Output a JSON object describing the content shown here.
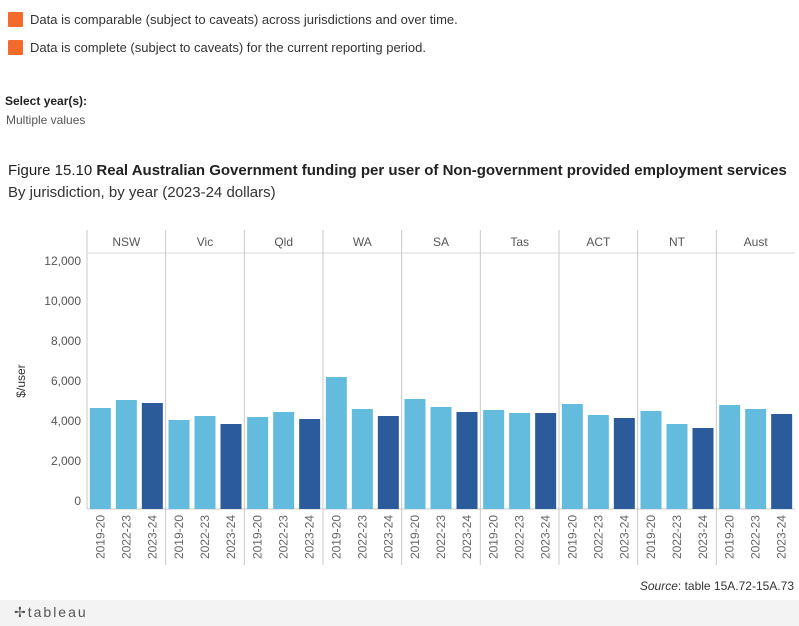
{
  "legend": [
    {
      "label": "Data is comparable (subject to caveats) across jurisdictions and over time.",
      "color": "#f26b2a"
    },
    {
      "label": "Data is complete (subject to caveats) for the current reporting period.",
      "color": "#f26b2a"
    }
  ],
  "filter": {
    "label": "Select year(s):",
    "value": "Multiple values"
  },
  "figure": {
    "number": "Figure 15.10",
    "title": "Real Australian Government funding per user of Non-government provided employment services",
    "subtitle": "By jurisdiction, by year (2023-24 dollars)"
  },
  "source": {
    "prefix": "Source",
    "text": ": table 15A.72-15A.73"
  },
  "footer": {
    "logo": "+ableau",
    "logo_icon": "tableau-cross-icon"
  },
  "chart_data": {
    "type": "bar",
    "ylabel": "$/user",
    "ylim": [
      0,
      12000
    ],
    "yticks": [
      0,
      2000,
      4000,
      6000,
      8000,
      10000,
      12000
    ],
    "ytick_labels": [
      "0",
      "2,000",
      "4,000",
      "6,000",
      "8,000",
      "10,000",
      "12,000"
    ],
    "panels": [
      "NSW",
      "Vic",
      "Qld",
      "WA",
      "SA",
      "Tas",
      "ACT",
      "NT",
      "Aust"
    ],
    "years": [
      "2019-20",
      "2022-23",
      "2023-24"
    ],
    "colors": {
      "2019-20": "#63bbdd",
      "2022-23": "#63bbdd",
      "2023-24": "#2b5b9b"
    },
    "values": [
      [
        4650,
        5050,
        4900
      ],
      [
        4050,
        4250,
        3850
      ],
      [
        4200,
        4450,
        4100
      ],
      [
        6200,
        4600,
        4250
      ],
      [
        5100,
        4700,
        4450
      ],
      [
        4550,
        4400,
        4400
      ],
      [
        4850,
        4300,
        4150
      ],
      [
        4500,
        3850,
        3650
      ],
      [
        4800,
        4600,
        4350
      ]
    ]
  }
}
